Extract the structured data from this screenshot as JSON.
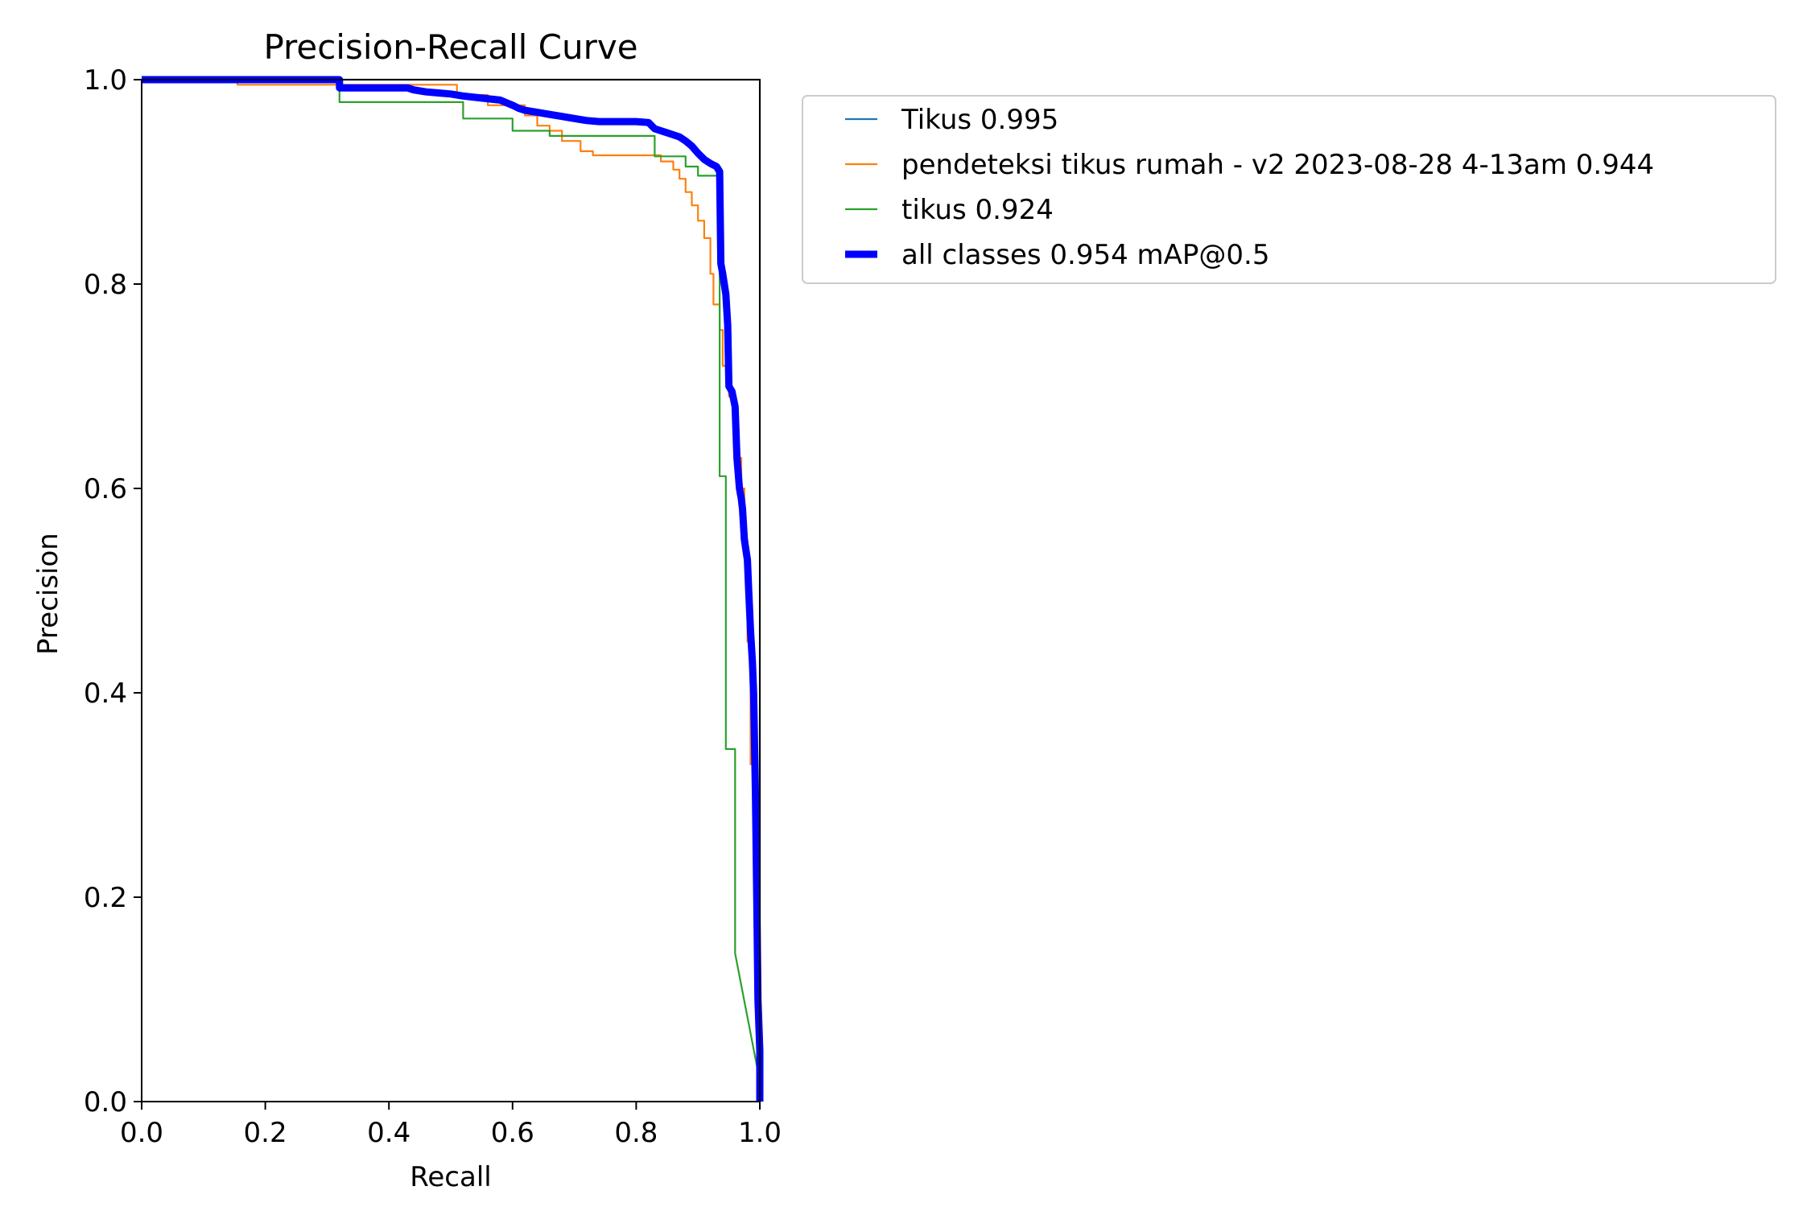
{
  "chart_data": {
    "type": "line",
    "title": "Precision-Recall Curve",
    "xlabel": "Recall",
    "ylabel": "Precision",
    "xlim": [
      0,
      1
    ],
    "ylim": [
      0,
      1
    ],
    "xticks": [
      "0.0",
      "0.2",
      "0.4",
      "0.6",
      "0.8",
      "1.0"
    ],
    "yticks": [
      "0.0",
      "0.2",
      "0.4",
      "0.6",
      "0.8",
      "1.0"
    ],
    "grid": false,
    "legend_position": "outside-top-right",
    "series": [
      {
        "name": "Tikus 0.995",
        "color": "#1f77b4",
        "width": "thin",
        "x": [
          0.0,
          0.995,
          0.995,
          1.0,
          1.0
        ],
        "y": [
          1.0,
          1.0,
          1.0,
          1.0,
          0.0
        ]
      },
      {
        "name": "pendeteksi tikus rumah - v2 2023-08-28 4-13am 0.944",
        "color": "#ff7f0e",
        "width": "thin",
        "x": [
          0.0,
          0.155,
          0.155,
          0.51,
          0.51,
          0.56,
          0.56,
          0.62,
          0.62,
          0.64,
          0.64,
          0.66,
          0.66,
          0.68,
          0.68,
          0.71,
          0.71,
          0.73,
          0.73,
          0.84,
          0.84,
          0.86,
          0.86,
          0.87,
          0.87,
          0.88,
          0.88,
          0.89,
          0.89,
          0.9,
          0.9,
          0.91,
          0.91,
          0.92,
          0.92,
          0.925,
          0.925,
          0.935,
          0.935,
          0.94,
          0.94,
          0.95,
          0.95,
          0.96,
          0.96,
          0.965,
          0.965,
          0.97,
          0.97,
          0.975,
          0.975,
          0.98,
          0.98,
          0.985,
          0.985,
          0.99,
          0.99,
          0.995,
          0.995,
          1.0
        ],
        "y": [
          1.0,
          1.0,
          0.995,
          0.995,
          0.985,
          0.985,
          0.975,
          0.975,
          0.965,
          0.965,
          0.955,
          0.955,
          0.95,
          0.95,
          0.94,
          0.94,
          0.93,
          0.93,
          0.926,
          0.926,
          0.92,
          0.92,
          0.912,
          0.912,
          0.903,
          0.903,
          0.89,
          0.89,
          0.877,
          0.877,
          0.862,
          0.862,
          0.845,
          0.845,
          0.81,
          0.81,
          0.78,
          0.78,
          0.755,
          0.755,
          0.72,
          0.72,
          0.69,
          0.69,
          0.66,
          0.66,
          0.63,
          0.63,
          0.6,
          0.6,
          0.55,
          0.55,
          0.45,
          0.45,
          0.33,
          0.33,
          0.25,
          0.25,
          0.1,
          0.0
        ]
      },
      {
        "name": "tikus 0.924",
        "color": "#2ca02c",
        "width": "thin",
        "x": [
          0.0,
          0.32,
          0.32,
          0.52,
          0.52,
          0.6,
          0.6,
          0.66,
          0.66,
          0.72,
          0.72,
          0.83,
          0.83,
          0.88,
          0.88,
          0.9,
          0.9,
          0.935,
          0.935,
          0.945,
          0.945,
          0.955,
          0.955,
          0.96,
          0.96,
          1.0
        ],
        "y": [
          1.0,
          1.0,
          0.978,
          0.978,
          0.962,
          0.962,
          0.95,
          0.95,
          0.945,
          0.945,
          0.945,
          0.945,
          0.925,
          0.925,
          0.915,
          0.915,
          0.906,
          0.906,
          0.612,
          0.612,
          0.345,
          0.345,
          0.345,
          0.345,
          0.145,
          0.02
        ]
      },
      {
        "name": "all classes 0.954 mAP@0.5",
        "color": "#0000ff",
        "width": "thick",
        "x": [
          0.0,
          0.32,
          0.32,
          0.43,
          0.44,
          0.46,
          0.48,
          0.5,
          0.52,
          0.55,
          0.58,
          0.6,
          0.61,
          0.62,
          0.64,
          0.66,
          0.68,
          0.7,
          0.72,
          0.74,
          0.76,
          0.8,
          0.82,
          0.83,
          0.85,
          0.87,
          0.88,
          0.89,
          0.9,
          0.91,
          0.92,
          0.93,
          0.935,
          0.937,
          0.94,
          0.945,
          0.948,
          0.95,
          0.955,
          0.96,
          0.963,
          0.967,
          0.97,
          0.972,
          0.975,
          0.98,
          0.982,
          0.985,
          0.988,
          0.99,
          0.993,
          0.995,
          0.997,
          1.0,
          1.0
        ],
        "y": [
          1.0,
          1.0,
          0.992,
          0.992,
          0.99,
          0.988,
          0.987,
          0.986,
          0.984,
          0.982,
          0.98,
          0.975,
          0.972,
          0.97,
          0.968,
          0.966,
          0.964,
          0.962,
          0.96,
          0.959,
          0.959,
          0.959,
          0.958,
          0.952,
          0.948,
          0.944,
          0.94,
          0.935,
          0.928,
          0.922,
          0.918,
          0.915,
          0.91,
          0.82,
          0.81,
          0.79,
          0.76,
          0.7,
          0.695,
          0.68,
          0.63,
          0.6,
          0.59,
          0.58,
          0.55,
          0.53,
          0.5,
          0.46,
          0.43,
          0.4,
          0.3,
          0.2,
          0.1,
          0.05,
          0.0
        ]
      }
    ]
  }
}
